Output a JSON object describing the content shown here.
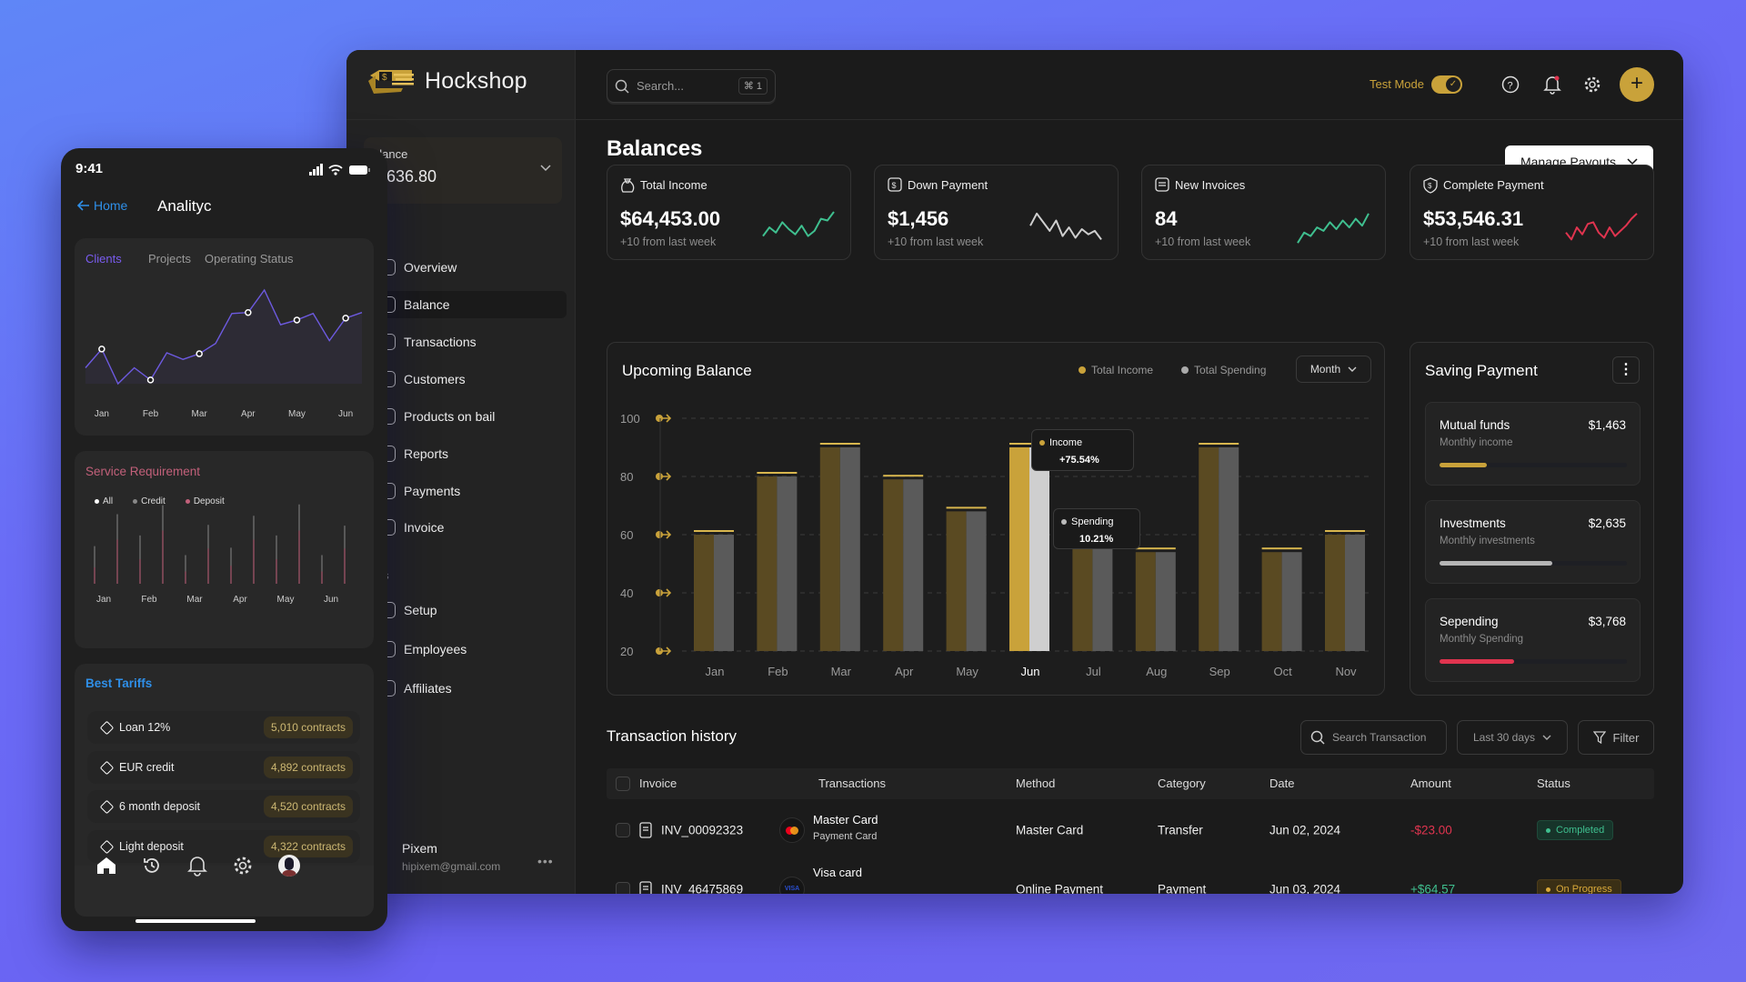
{
  "app": {
    "name": "Hockshop",
    "search_placeholder": "Search...",
    "search_shortcut": "⌘ 1",
    "test_mode_label": "Test Mode",
    "test_mode_on": true
  },
  "sidebar": {
    "balance_label": "alance",
    "balance_value": "8,636.80",
    "section_main": "n",
    "items": [
      {
        "label": "Overview"
      },
      {
        "label": "Balance",
        "active": true
      },
      {
        "label": "Transactions"
      },
      {
        "label": "Customers"
      },
      {
        "label": "Products on bail"
      },
      {
        "label": "Reports"
      },
      {
        "label": "Payments"
      },
      {
        "label": "Invoice"
      }
    ],
    "section_other": "ers",
    "other_items": [
      {
        "label": "Setup"
      },
      {
        "label": "Employees"
      },
      {
        "label": "Affiliates"
      }
    ],
    "user": {
      "name": "Pixem",
      "email": "hipixem@gmail.com"
    }
  },
  "page": {
    "title": "Balances",
    "manage_payouts": "Manage Payouts"
  },
  "stats": [
    {
      "title": "Total Income",
      "value": "$64,453.00",
      "sub": "+10 from last week",
      "color": "#3fbf8f",
      "spark": [
        30,
        55,
        40,
        70,
        50,
        35,
        60,
        30,
        45,
        80,
        75,
        100
      ]
    },
    {
      "title": "Down Payment",
      "value": "$1,456",
      "sub": "+10 from last week",
      "color": "#cfcfcf",
      "spark": [
        60,
        95,
        70,
        45,
        75,
        30,
        55,
        25,
        50,
        35,
        45,
        20
      ]
    },
    {
      "title": "New Invoices",
      "value": "84",
      "sub": "+10 from last week",
      "color": "#3fbf8f",
      "spark": [
        10,
        40,
        30,
        55,
        45,
        70,
        50,
        75,
        55,
        80,
        60,
        95
      ]
    },
    {
      "title": "Complete Payment",
      "value": "$53,546.31",
      "sub": "+10 from last week",
      "color": "#e0344f",
      "spark": [
        40,
        20,
        55,
        35,
        65,
        70,
        40,
        25,
        55,
        30,
        45,
        60,
        80,
        95
      ]
    }
  ],
  "upcoming": {
    "title": "Upcoming Balance",
    "period": "Month",
    "tooltip_income_label": "Income",
    "tooltip_income_value": "+75.54%",
    "tooltip_spending_label": "Spending",
    "tooltip_spending_value": "10.21%"
  },
  "chart_data": {
    "type": "bar",
    "title": "Upcoming Balance",
    "categories": [
      "Jan",
      "Feb",
      "Mar",
      "Apr",
      "May",
      "Jun",
      "Jul",
      "Aug",
      "Sep",
      "Oct",
      "Nov"
    ],
    "series": [
      {
        "name": "Total Income",
        "color": "#c9a23a",
        "values": [
          60,
          80,
          90,
          79,
          68,
          90,
          65,
          54,
          90,
          54,
          60
        ]
      },
      {
        "name": "Total Spending",
        "color": "#8a8a8a",
        "values": [
          60,
          80,
          90,
          79,
          68,
          90,
          65,
          54,
          90,
          54,
          60
        ]
      }
    ],
    "highlight": "Jun",
    "ylim": [
      20,
      100
    ],
    "yticks": [
      "100",
      "80",
      "60",
      "40",
      "20"
    ],
    "legend": "top-right",
    "grid": true
  },
  "saving": {
    "title": "Saving Payment",
    "items": [
      {
        "name": "Mutual funds",
        "sub": "Monthly income",
        "amount": "$1,463",
        "progress": 0.25,
        "color": "#c9a23a"
      },
      {
        "name": "Investments",
        "sub": "Monthly investments",
        "amount": "$2,635",
        "progress": 0.6,
        "color": "#b5b5b5"
      },
      {
        "name": "Sepending",
        "sub": "Monthly Spending",
        "amount": "$3,768",
        "progress": 0.4,
        "color": "#e0344f"
      }
    ]
  },
  "transactions": {
    "title": "Transaction history",
    "search_placeholder": "Search Transaction",
    "range": "Last 30 days",
    "filter": "Filter",
    "columns": [
      "Invoice",
      "Transactions",
      "Method",
      "Category",
      "Date",
      "Amount",
      "Status"
    ],
    "rows": [
      {
        "invoice": "INV_00092323",
        "name": "Master Card",
        "sub": "Payment Card",
        "method": "Master Card",
        "category": "Transfer",
        "date": "Jun 02, 2024",
        "amount": "-$23.00",
        "status": "Completed",
        "card_brand": "VISA"
      },
      {
        "invoice": "INV_46475869",
        "name": "Visa card",
        "sub": "",
        "method": "Online Payment",
        "category": "Payment",
        "date": "Jun 03, 2024",
        "amount": "+$64.57",
        "status": "On Progress",
        "card_brand": "VISA"
      }
    ]
  },
  "phone": {
    "time": "9:41",
    "back": "Home",
    "title": "Analityc",
    "tabs": [
      "Clients",
      "Projects",
      "Operating Status"
    ],
    "service_title": "Service Requirement",
    "legend": [
      "All",
      "Credit",
      "Deposit"
    ],
    "best_title": "Best Tariffs",
    "tariffs": [
      {
        "name": "Loan 12%",
        "count": "5,010 contracts"
      },
      {
        "name": "EUR credit",
        "count": "4,892 contracts"
      },
      {
        "name": "6 month deposit",
        "count": "4,520 contracts"
      },
      {
        "name": "Light deposit",
        "count": "4,322 contracts"
      }
    ]
  },
  "phone_charts": [
    {
      "type": "line",
      "title": "Clients",
      "categories": [
        "Jan",
        "Feb",
        "Mar",
        "Apr",
        "May",
        "Jun"
      ],
      "points": [
        17,
        37,
        0,
        17,
        4,
        33,
        26,
        32,
        43,
        75,
        76,
        100,
        63,
        68,
        75,
        46,
        70,
        76
      ],
      "marker_indices": [
        1,
        4,
        7,
        10,
        13,
        16
      ],
      "ylim": [
        0,
        100
      ]
    },
    {
      "type": "bar",
      "title": "Service Requirement",
      "categories": [
        "Jan",
        "Feb",
        "Mar",
        "Apr",
        "May",
        "Jun"
      ],
      "series": [
        {
          "name": "All",
          "values": [
            46,
            85,
            59,
            96,
            35,
            72,
            44,
            83,
            59,
            97,
            35,
            71
          ]
        },
        {
          "name": "Deposit",
          "values": [
            20,
            54,
            30,
            65,
            15,
            43,
            22,
            54,
            30,
            65,
            15,
            43
          ]
        }
      ],
      "ylim": [
        0,
        100
      ]
    }
  ]
}
